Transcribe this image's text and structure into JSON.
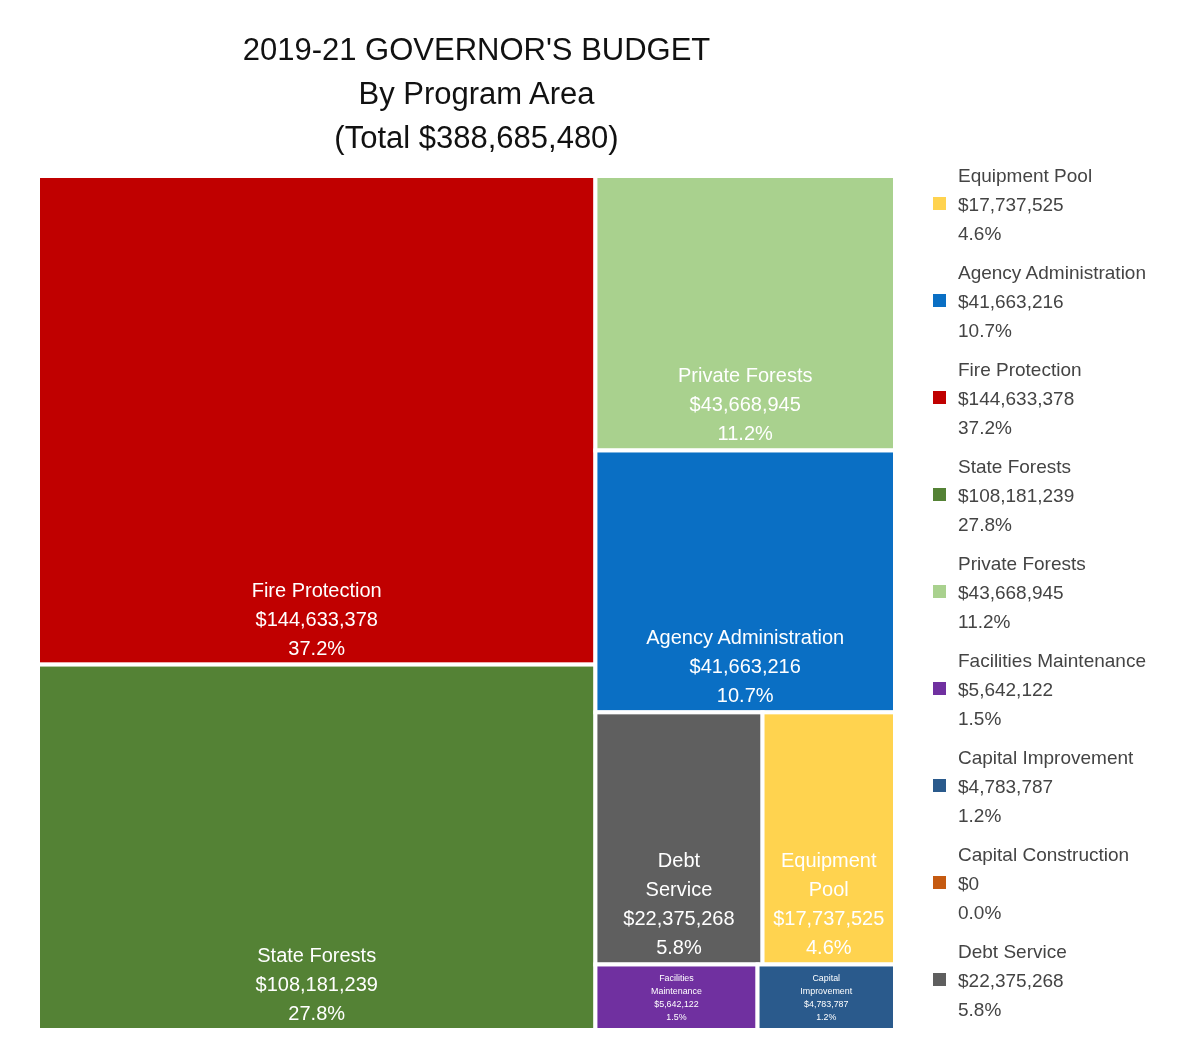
{
  "chart_data": {
    "type": "other",
    "title": "2019-21 GOVERNOR'S BUDGET\nBy Program Area\n(Total $388,685,480)",
    "categories": [
      "Equipment Pool",
      "Agency Administration",
      "Fire Protection",
      "State Forests",
      "Private Forests",
      "Facilities Maintenance",
      "Capital Improvement",
      "Capital Construction",
      "Debt Service"
    ],
    "colors": [
      "#ffd34f",
      "#0a6fc4",
      "#c00000",
      "#548235",
      "#a9d18e",
      "#7030a0",
      "#2a5a8c",
      "#c55a11",
      "#5f5f5f"
    ],
    "values": [
      17737525,
      41663216,
      144633378,
      108181239,
      43668945,
      5642122,
      4783787,
      0,
      22375268
    ],
    "value_labels": [
      "$17,737,525\n4.6%",
      "$41,663,216\n10.7%",
      "$144,633,378\n37.2%",
      "$108,181,239\n27.8%",
      "$43,668,945\n11.2%",
      "$5,642,122\n1.5%",
      "$4,783,787\n1.2%",
      "$0\n0.0%",
      "$22,375,268\n5.8%"
    ],
    "data_labels": true
  }
}
